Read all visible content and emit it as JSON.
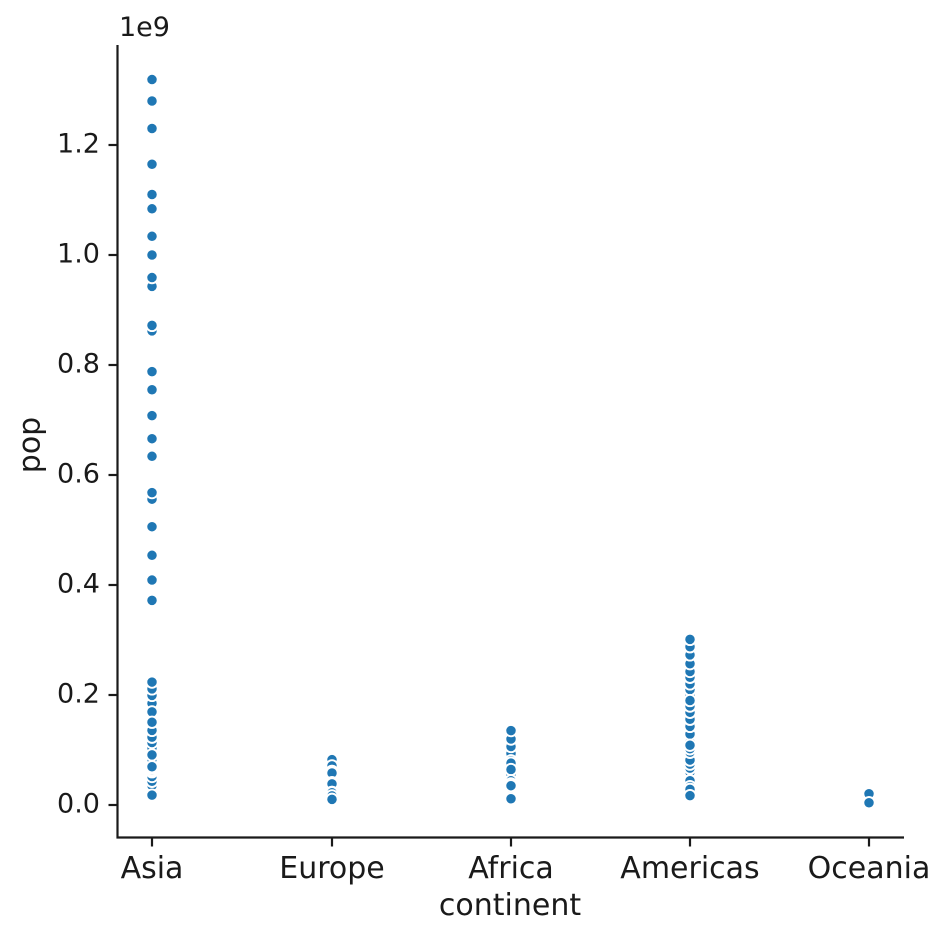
{
  "chart_data": {
    "type": "scatter",
    "title": "",
    "xlabel": "continent",
    "ylabel": "pop",
    "offset_text": "1e9",
    "legend": "none",
    "grid": false,
    "x_categories": [
      "Asia",
      "Europe",
      "Africa",
      "Americas",
      "Oceania"
    ],
    "ytick_labels": [
      "0.0",
      "0.2",
      "0.4",
      "0.6",
      "0.8",
      "1.0",
      "1.2"
    ],
    "ytick_values": [
      0.0,
      0.2,
      0.4,
      0.6,
      0.8,
      1.0,
      1.2
    ],
    "y_unit": "1e9",
    "ylim": [
      -0.058,
      1.382
    ],
    "point_color": "#1f77b4",
    "point_edge_color": "#ffffff",
    "axis_color": "#1a1a1a",
    "series": [
      {
        "category": "Asia",
        "point_groups": [
          [
            0.556,
            0.637,
            0.666,
            0.755,
            0.862,
            0.943,
            1.0,
            1.084,
            1.165,
            1.23,
            1.28,
            1.319
          ],
          [
            0.372,
            0.409,
            0.454,
            0.506,
            0.568,
            0.634,
            0.708,
            0.788,
            0.872,
            0.959,
            1.034,
            1.11
          ],
          [
            0.0821,
            0.0901,
            0.099,
            0.1093,
            0.1213,
            0.1367,
            0.1533,
            0.1693,
            0.1848,
            0.1993,
            0.2111,
            0.2235
          ],
          [
            0.0865,
            0.0916,
            0.0958,
            0.1008,
            0.1072,
            0.1139,
            0.1185,
            0.1221,
            0.1243,
            0.1259,
            0.1271,
            0.1272
          ],
          [
            0.0413,
            0.0467,
            0.0531,
            0.0606,
            0.0693,
            0.0782,
            0.0915,
            0.1052,
            0.1201,
            0.1356,
            0.1534,
            0.1693
          ],
          [
            0.0469,
            0.0514,
            0.0568,
            0.0628,
            0.0708,
            0.0804,
            0.0931,
            0.1038,
            0.1137,
            0.1233,
            0.1357,
            0.1504
          ],
          [
            0.0262,
            0.0289,
            0.0338,
            0.0395,
            0.0447,
            0.0505,
            0.0561,
            0.0628,
            0.0699,
            0.076,
            0.0809,
            0.0853
          ],
          [
            0.0224,
            0.0261,
            0.0303,
            0.0354,
            0.0409,
            0.0469,
            0.0535,
            0.06,
            0.0672,
            0.075,
            0.083,
            0.0911
          ],
          [
            0.0213,
            0.025,
            0.0292,
            0.034,
            0.0393,
            0.0441,
            0.0488,
            0.0527,
            0.0567,
            0.0602,
            0.0628,
            0.0651
          ],
          [
            0.0201,
            0.0217,
            0.0236,
            0.0259,
            0.0285,
            0.0315,
            0.0348,
            0.038,
            0.0405,
            0.0432,
            0.0456,
            0.0478
          ],
          [
            0.02,
            0.0226,
            0.0264,
            0.0301,
            0.0335,
            0.0364,
            0.0393,
            0.0416,
            0.0438,
            0.0462,
            0.0478,
            0.049
          ],
          [
            0.0173,
            0.0198,
            0.0229,
            0.0265,
            0.0306,
            0.0355,
            0.0431,
            0.0519,
            0.0604,
            0.0633,
            0.0669,
            0.0695
          ],
          [
            0.0012,
            0.0022,
            0.0035,
            0.0051,
            0.0066,
            0.008,
            0.0095,
            0.011,
            0.0125,
            0.0142,
            0.016,
            0.018
          ]
        ]
      },
      {
        "category": "Europe",
        "point_groups": [
          [
            0.0691,
            0.0712,
            0.0733,
            0.0762,
            0.0787,
            0.0782,
            0.0784,
            0.0779,
            0.0804,
            0.0821,
            0.0824,
            0.0824
          ],
          [
            0.0224,
            0.0253,
            0.0291,
            0.0332,
            0.0376,
            0.0422,
            0.0471,
            0.0525,
            0.0583,
            0.0633,
            0.0678,
            0.0712
          ],
          [
            0.0425,
            0.0442,
            0.047,
            0.0498,
            0.0516,
            0.0532,
            0.0547,
            0.0554,
            0.0575,
            0.0587,
            0.0596,
            0.0611
          ],
          [
            0.0504,
            0.0513,
            0.0532,
            0.0546,
            0.056,
            0.056,
            0.0561,
            0.0568,
            0.0577,
            0.0587,
            0.0593,
            0.0608
          ],
          [
            0.0476,
            0.0494,
            0.0504,
            0.0526,
            0.0546,
            0.0562,
            0.0565,
            0.0567,
            0.0568,
            0.0572,
            0.0576,
            0.0582
          ],
          [
            0.0285,
            0.0297,
            0.031,
            0.0324,
            0.0345,
            0.037,
            0.0379,
            0.0387,
            0.0393,
            0.0398,
            0.0403,
            0.0404
          ],
          [
            0.0257,
            0.0284,
            0.0303,
            0.0318,
            0.0332,
            0.0346,
            0.0364,
            0.0378,
            0.0384,
            0.0387,
            0.0386,
            0.0385
          ],
          [
            0.0166,
            0.0175,
            0.0184,
            0.0194,
            0.0208,
            0.0216,
            0.0224,
            0.0229,
            0.0227,
            0.0226,
            0.0224,
            0.0223
          ],
          [
            0.0104,
            0.011,
            0.0118,
            0.0126,
            0.0133,
            0.0139,
            0.0143,
            0.0147,
            0.0152,
            0.0156,
            0.0161,
            0.0166
          ],
          [
            0.0015,
            0.002,
            0.003,
            0.0041,
            0.0052,
            0.0063,
            0.0073,
            0.0082,
            0.009,
            0.0095,
            0.01,
            0.0103
          ]
        ]
      },
      {
        "category": "Africa",
        "point_groups": [
          [
            0.0332,
            0.0374,
            0.0418,
            0.0473,
            0.0537,
            0.0622,
            0.0731,
            0.0816,
            0.0935,
            0.1063,
            0.1199,
            0.1353
          ],
          [
            0.0222,
            0.0259,
            0.0311,
            0.0348,
            0.0388,
            0.0426,
            0.0473,
            0.0528,
            0.0594,
            0.0663,
            0.0735,
            0.0803
          ],
          [
            0.0204,
            0.0223,
            0.0247,
            0.0275,
            0.0307,
            0.0345,
            0.0381,
            0.0427,
            0.0498,
            0.0598,
            0.0679,
            0.0761
          ],
          [
            0.0142,
            0.0156,
            0.0176,
            0.02,
            0.0231,
            0.0268,
            0.031,
            0.0356,
            0.041,
            0.0472,
            0.0556,
            0.0645
          ],
          [
            0.0143,
            0.0164,
            0.018,
            0.0198,
            0.0218,
            0.0244,
            0.0278,
            0.0315,
            0.036,
            0.0397,
            0.0426,
            0.044
          ],
          [
            0.008,
            0.0089,
            0.0102,
            0.0117,
            0.0134,
            0.0154,
            0.0177,
            0.0203,
            0.0261,
            0.0308,
            0.0345,
            0.0384
          ],
          [
            0.0064,
            0.0076,
            0.009,
            0.0105,
            0.0125,
            0.0148,
            0.0175,
            0.0207,
            0.0245,
            0.0285,
            0.0316,
            0.0351
          ],
          [
            0.0006,
            0.0011,
            0.0018,
            0.0026,
            0.0035,
            0.0045,
            0.0055,
            0.0065,
            0.0076,
            0.0088,
            0.01,
            0.0113
          ]
        ]
      },
      {
        "category": "Americas",
        "point_groups": [
          [
            0.1575,
            0.1719,
            0.1865,
            0.1987,
            0.2099,
            0.2202,
            0.2322,
            0.2428,
            0.2569,
            0.2729,
            0.2877,
            0.3011
          ],
          [
            0.0566,
            0.0655,
            0.076,
            0.088,
            0.1008,
            0.1143,
            0.1289,
            0.1429,
            0.1559,
            0.1685,
            0.1799,
            0.19
          ],
          [
            0.0301,
            0.035,
            0.0411,
            0.047,
            0.0528,
            0.0599,
            0.067,
            0.0743,
            0.0817,
            0.0958,
            0.1022,
            0.1087
          ],
          [
            0.0179,
            0.0193,
            0.0211,
            0.0228,
            0.0246,
            0.0265,
            0.0293,
            0.0314,
            0.0338,
            0.0361,
            0.0381,
            0.0403
          ],
          [
            0.0121,
            0.0143,
            0.017,
            0.0198,
            0.0228,
            0.0257,
            0.0287,
            0.0309,
            0.0341,
            0.0378,
            0.041,
            0.0442
          ],
          [
            0.0148,
            0.017,
            0.019,
            0.0207,
            0.0222,
            0.0235,
            0.0251,
            0.0264,
            0.0285,
            0.0302,
            0.0319,
            0.0334
          ],
          [
            0.0079,
            0.0091,
            0.0105,
            0.0122,
            0.0139,
            0.0159,
            0.0183,
            0.0205,
            0.0229,
            0.0252,
            0.0269,
            0.0285
          ],
          [
            0.0008,
            0.0015,
            0.0025,
            0.004,
            0.0055,
            0.007,
            0.0085,
            0.01,
            0.0115,
            0.013,
            0.015,
            0.017
          ]
        ]
      },
      {
        "category": "Oceania",
        "point_groups": [
          [
            0.0087,
            0.0096,
            0.0107,
            0.0118,
            0.0131,
            0.0142,
            0.0152,
            0.0162,
            0.0175,
            0.0186,
            0.0196,
            0.0204
          ],
          [
            0.002,
            0.0022,
            0.0025,
            0.0027,
            0.0029,
            0.0031,
            0.0032,
            0.0033,
            0.0035,
            0.0037,
            0.0039,
            0.0041
          ]
        ]
      }
    ]
  }
}
